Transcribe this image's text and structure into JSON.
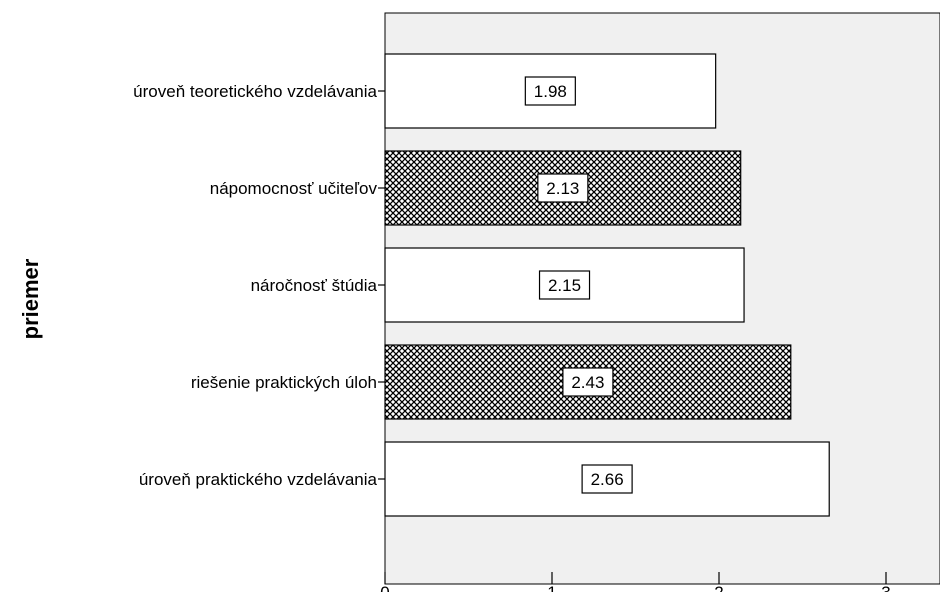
{
  "chart_data": {
    "type": "bar",
    "orientation": "horizontal",
    "ylabel": "priemer",
    "categories": [
      "úroveň teoretického vzdelávania",
      "nápomocnosť učiteľov",
      "náročnosť štúdia",
      "riešenie praktických úloh",
      "úroveň praktického vzdelávania"
    ],
    "values": [
      1.98,
      2.13,
      2.15,
      2.43,
      2.66
    ],
    "data_labels": [
      "1.98",
      "2.13",
      "2.15",
      "2.43",
      "2.66"
    ],
    "bar_fill": [
      "plain",
      "crosshatch",
      "plain",
      "crosshatch",
      "plain"
    ],
    "xticks": [
      "0",
      "1",
      "2",
      "3"
    ],
    "xlim": [
      0,
      3.3
    ],
    "grid": false,
    "colors": {
      "plot_background": "#f0f0f0",
      "bar_plain": "#ffffff",
      "bar_hatch": "#000000",
      "axis": "#000000"
    }
  }
}
